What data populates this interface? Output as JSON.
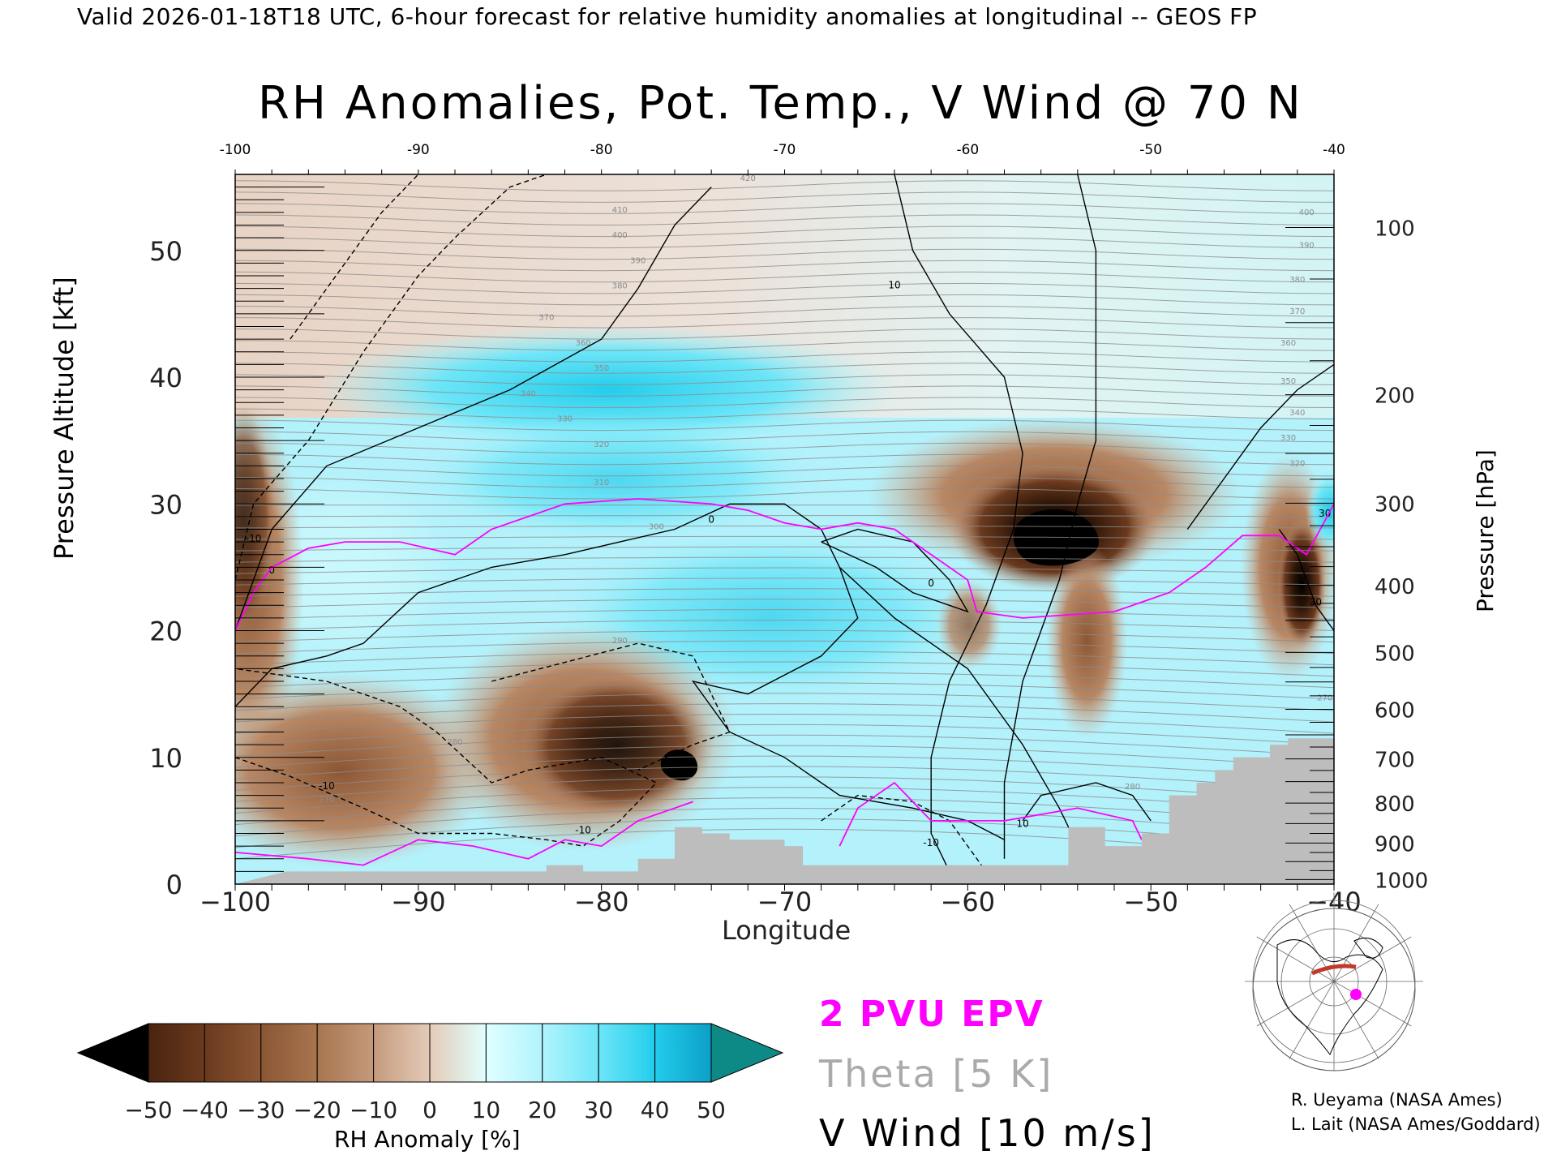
{
  "caption": "Valid 2026-01-18T18 UTC, 6-hour forecast for relative humidity anomalies at longitudinal -- GEOS FP",
  "title": "RH Anomalies, Pot. Temp., V Wind @ 70 N",
  "xlabel": "Longitude",
  "ylabel": "Pressure Altitude [kft]",
  "yright_label": "Pressure [hPa]",
  "x_ticks": [
    "−100",
    "−90",
    "−80",
    "−70",
    "−60",
    "−50",
    "−40"
  ],
  "x_top_ticks": [
    "-100",
    "-90",
    "-80",
    "-70",
    "-60",
    "-50",
    "-40"
  ],
  "y_ticks": [
    "0",
    "10",
    "20",
    "30",
    "40",
    "50"
  ],
  "pressure_ticks": [
    "100",
    "200",
    "300",
    "400",
    "500",
    "600",
    "700",
    "800",
    "900",
    "1000"
  ],
  "legend": {
    "epv": "2 PVU EPV",
    "theta": "Theta [5 K]",
    "wind": "V Wind [10 m/s]"
  },
  "colorbar": {
    "title": "RH Anomaly [%]",
    "labels": [
      "−50",
      "−40",
      "−30",
      "−20",
      "−10",
      "0",
      "10",
      "20",
      "30",
      "40",
      "50"
    ],
    "colors": [
      "#4a2410",
      "#6b3a1e",
      "#8b5634",
      "#a8754f",
      "#c49a7c",
      "#e4cbb8",
      "#e0ffff",
      "#b0f4fc",
      "#6ee6f8",
      "#22cdec",
      "#0d9fc7"
    ],
    "under_color": "#000000",
    "over_color": "#0e8a86"
  },
  "credits": [
    "R. Ueyama (NASA Ames)",
    "L. Lait (NASA Ames/Goddard)"
  ],
  "chart_data": {
    "type": "heatmap",
    "title": "RH Anomalies, Pot. Temp., V Wind @ 70 N",
    "xlabel": "Longitude",
    "ylabel": "Pressure Altitude [kft]",
    "xlim": [
      -100,
      -40
    ],
    "ylim": [
      0,
      56
    ],
    "x_ticks": [
      -100,
      -90,
      -80,
      -70,
      -60,
      -50,
      -40
    ],
    "y_ticks": [
      0,
      10,
      20,
      30,
      40,
      50
    ],
    "pressure_axis_hpa": [
      100,
      200,
      300,
      400,
      500,
      600,
      700,
      800,
      900,
      1000
    ],
    "rh_anomaly_features": [
      {
        "lon": -99,
        "alt_kft": 20,
        "rh_anomaly": -40
      },
      {
        "lon": -95,
        "alt_kft": 10,
        "rh_anomaly": -20
      },
      {
        "lon": -80,
        "alt_kft": 11,
        "rh_anomaly": -40
      },
      {
        "lon": -76,
        "alt_kft": 9,
        "rh_anomaly": -55
      },
      {
        "lon": -85,
        "alt_kft": 16,
        "rh_anomaly": -15
      },
      {
        "lon": -77,
        "alt_kft": 32,
        "rh_anomaly": 30
      },
      {
        "lon": -72,
        "alt_kft": 25,
        "rh_anomaly": 15
      },
      {
        "lon": -65,
        "alt_kft": 12,
        "rh_anomaly": 20
      },
      {
        "lon": -56,
        "alt_kft": 27,
        "rh_anomaly": -55
      },
      {
        "lon": -57,
        "alt_kft": 31,
        "rh_anomaly": -40
      },
      {
        "lon": -62,
        "alt_kft": 35,
        "rh_anomaly": -10
      },
      {
        "lon": -55,
        "alt_kft": 15,
        "rh_anomaly": -25
      },
      {
        "lon": -59,
        "alt_kft": 19,
        "rh_anomaly": -20
      },
      {
        "lon": -50,
        "alt_kft": 22,
        "rh_anomaly": 20
      },
      {
        "lon": -43,
        "alt_kft": 27,
        "rh_anomaly": -50
      },
      {
        "lon": -41,
        "alt_kft": 22,
        "rh_anomaly": -30
      },
      {
        "lon": -40.5,
        "alt_kft": 30,
        "rh_anomaly": 40
      },
      {
        "lon": -82,
        "alt_kft": 48,
        "rh_anomaly": -8
      },
      {
        "lon": -55,
        "alt_kft": 50,
        "rh_anomaly": 5
      }
    ],
    "theta_contour_labels": [
      270,
      280,
      290,
      300,
      310,
      320,
      330,
      340,
      350,
      360,
      370,
      380,
      390,
      400,
      410,
      420
    ],
    "v_wind_contour_labels": [
      -10,
      0,
      10,
      30
    ],
    "series": [
      {
        "name": "2 PVU EPV",
        "points": [
          [
            -100,
            20
          ],
          [
            -99,
            23
          ],
          [
            -98,
            25
          ],
          [
            -96,
            26.5
          ],
          [
            -94,
            27
          ],
          [
            -91,
            27
          ],
          [
            -88,
            26
          ],
          [
            -86,
            28
          ],
          [
            -84,
            29
          ],
          [
            -82,
            30
          ],
          [
            -80,
            30.2
          ],
          [
            -78,
            30.4
          ],
          [
            -76,
            30.2
          ],
          [
            -74,
            30
          ],
          [
            -72,
            29.5
          ],
          [
            -70,
            28.5
          ],
          [
            -68,
            28
          ],
          [
            -66,
            28.5
          ],
          [
            -64,
            28
          ],
          [
            -62,
            26
          ],
          [
            -60,
            24
          ],
          [
            -59.5,
            21.5
          ],
          [
            -57,
            21
          ],
          [
            -52,
            21.5
          ],
          [
            -49,
            23
          ],
          [
            -47,
            25
          ],
          [
            -45,
            27.5
          ],
          [
            -43,
            27.5
          ],
          [
            -41.5,
            26
          ],
          [
            -40,
            30
          ]
        ]
      },
      {
        "name": "2 PVU EPV (lower)",
        "points": [
          [
            -100,
            2.5
          ],
          [
            -96,
            2
          ],
          [
            -93,
            1.5
          ],
          [
            -90,
            3.5
          ],
          [
            -87,
            3
          ],
          [
            -84,
            2
          ],
          [
            -82,
            3.5
          ],
          [
            -80,
            3
          ],
          [
            -78,
            5
          ],
          [
            -76,
            6
          ],
          [
            -75,
            6.5
          ]
        ]
      },
      {
        "name": "2 PVU EPV (lower, east)",
        "points": [
          [
            -67,
            3
          ],
          [
            -66,
            6
          ],
          [
            -64,
            8
          ],
          [
            -62,
            5
          ],
          [
            -58,
            5
          ],
          [
            -54,
            6
          ],
          [
            -51,
            5
          ],
          [
            -50.5,
            3.5
          ]
        ]
      }
    ]
  }
}
